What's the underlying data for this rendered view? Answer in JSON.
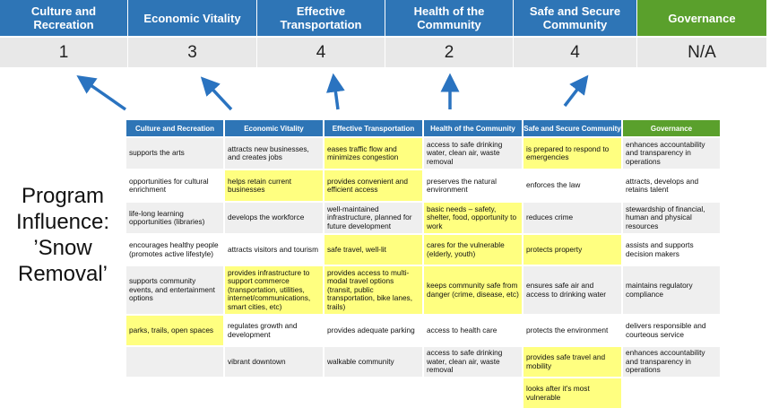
{
  "header": {
    "pillars": [
      "Culture and Recreation",
      "Economic Vitality",
      "Effective Transportation",
      "Health of the Community",
      "Safe and Secure Community",
      "Governance"
    ],
    "scores": [
      1,
      3,
      4,
      2,
      4,
      "N/A"
    ]
  },
  "label_lines": [
    "Program",
    "Influence:",
    "’Snow",
    "Removal’"
  ],
  "table": {
    "columns": [
      "Culture and Recreation",
      "Economic Vitality",
      "Effective Transportation",
      "Health of the Community",
      "Safe and Secure Community",
      "Governance"
    ],
    "rows": [
      [
        {
          "text": "supports the arts",
          "highlight": false
        },
        {
          "text": "attracts new businesses, and creates jobs",
          "highlight": false
        },
        {
          "text": "eases traffic flow and minimizes congestion",
          "highlight": true
        },
        {
          "text": "access to safe drinking water, clean air, waste removal",
          "highlight": false
        },
        {
          "text": "is prepared to respond to emergencies",
          "highlight": true
        },
        {
          "text": "enhances accountability and transparency in operations",
          "highlight": false
        }
      ],
      [
        {
          "text": "opportunities for cultural enrichment",
          "highlight": false
        },
        {
          "text": "helps retain current businesses",
          "highlight": true
        },
        {
          "text": "provides convenient and efficient access",
          "highlight": true
        },
        {
          "text": "preserves the natural environment",
          "highlight": false
        },
        {
          "text": "enforces the law",
          "highlight": false
        },
        {
          "text": "attracts, develops and retains talent",
          "highlight": false
        }
      ],
      [
        {
          "text": "life-long learning opportunities (libraries)",
          "highlight": false
        },
        {
          "text": "develops the workforce",
          "highlight": false
        },
        {
          "text": "well-maintained infrastructure, planned for future development",
          "highlight": false
        },
        {
          "text": "basic needs – safety, shelter, food, opportunity to work",
          "highlight": true
        },
        {
          "text": "reduces crime",
          "highlight": false
        },
        {
          "text": "stewardship of financial, human and physical resources",
          "highlight": false
        }
      ],
      [
        {
          "text": "encourages healthy people (promotes active lifestyle)",
          "highlight": false
        },
        {
          "text": "attracts visitors and tourism",
          "highlight": false
        },
        {
          "text": "safe travel, well-lit",
          "highlight": true
        },
        {
          "text": "cares for the vulnerable (elderly, youth)",
          "highlight": true
        },
        {
          "text": "protects property",
          "highlight": true
        },
        {
          "text": "assists and supports decision makers",
          "highlight": false
        }
      ],
      [
        {
          "text": "supports community events, and entertainment options",
          "highlight": false
        },
        {
          "text": "provides infrastructure to support commerce (transportation, utilities, internet/communications, smart cities, etc)",
          "highlight": true
        },
        {
          "text": "provides access to multi-modal travel options (transit, public transportation, bike lanes, trails)",
          "highlight": true
        },
        {
          "text": "keeps community safe from danger (crime, disease, etc)",
          "highlight": true
        },
        {
          "text": "ensures safe air and access to drinking water",
          "highlight": false
        },
        {
          "text": "maintains regulatory compliance",
          "highlight": false
        }
      ],
      [
        {
          "text": "parks, trails, open spaces",
          "highlight": true
        },
        {
          "text": "regulates growth and development",
          "highlight": false
        },
        {
          "text": "provides adequate parking",
          "highlight": false
        },
        {
          "text": "access to health care",
          "highlight": false
        },
        {
          "text": "protects the environment",
          "highlight": false
        },
        {
          "text": "delivers responsible and courteous service",
          "highlight": false
        }
      ],
      [
        null,
        {
          "text": "vibrant downtown",
          "highlight": false
        },
        {
          "text": "walkable community",
          "highlight": false
        },
        {
          "text": "access to safe drinking water, clean air, waste removal",
          "highlight": false
        },
        {
          "text": "provides safe travel and mobility",
          "highlight": true
        },
        {
          "text": "enhances accountability and transparency in operations",
          "highlight": false
        }
      ],
      [
        null,
        null,
        null,
        null,
        {
          "text": "looks after it's most vulnerable",
          "highlight": true
        },
        null
      ]
    ]
  }
}
